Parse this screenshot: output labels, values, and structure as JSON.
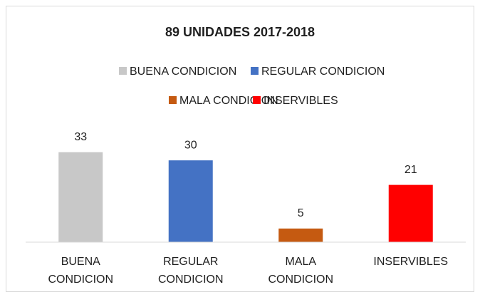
{
  "chart_data": {
    "type": "bar",
    "title": "89 UNIDADES 2017-2018",
    "categories": [
      "BUENA CONDICION",
      "REGULAR CONDICION",
      "MALA CONDICION",
      "INSERVIBLES"
    ],
    "values": [
      33,
      30,
      5,
      21
    ],
    "colors": [
      "#c8c8c8",
      "#4472c4",
      "#c55a11",
      "#ff0000"
    ],
    "ylim": [
      0,
      35
    ]
  }
}
